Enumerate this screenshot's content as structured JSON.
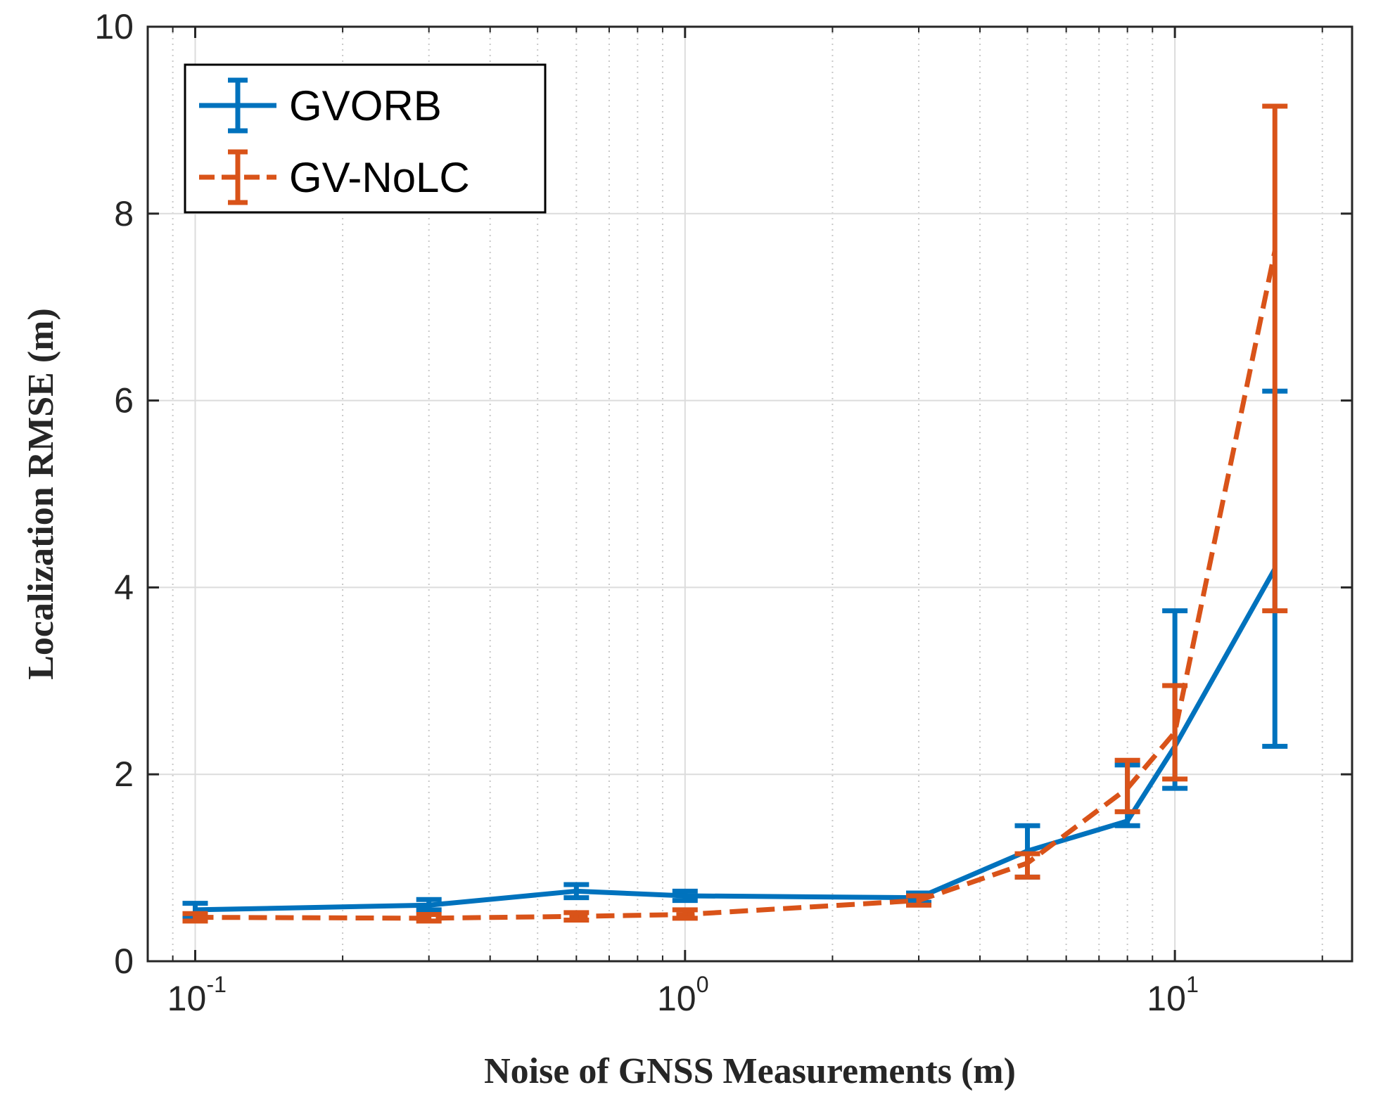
{
  "chart_data": {
    "type": "line",
    "title": "",
    "xlabel": "Noise of GNSS Measurements (m)",
    "ylabel": "Localization RMSE (m)",
    "xscale": "log",
    "xlim": [
      0.08,
      23
    ],
    "ylim": [
      0,
      10
    ],
    "grid": true,
    "legend_position": "top-left",
    "x_ticks": [
      {
        "value": 0.1,
        "base": "10",
        "exp": "-1"
      },
      {
        "value": 1,
        "base": "10",
        "exp": "0"
      },
      {
        "value": 10,
        "base": "10",
        "exp": "1"
      }
    ],
    "y_ticks": [
      {
        "value": 0,
        "label": "0"
      },
      {
        "value": 2,
        "label": "2"
      },
      {
        "value": 4,
        "label": "4"
      },
      {
        "value": 6,
        "label": "6"
      },
      {
        "value": 8,
        "label": "8"
      },
      {
        "value": 10,
        "label": "10"
      }
    ],
    "series": [
      {
        "name": "GVORB",
        "color": "#0072BD",
        "style": "solid",
        "x": [
          0.1,
          0.3,
          0.6,
          1,
          3,
          5,
          8,
          10,
          16
        ],
        "y": [
          0.55,
          0.6,
          0.75,
          0.7,
          0.68,
          1.18,
          1.5,
          2.3,
          4.2
        ],
        "err_low": [
          0.48,
          0.55,
          0.68,
          0.65,
          0.63,
          0.9,
          1.45,
          1.85,
          2.3
        ],
        "err_high": [
          0.62,
          0.66,
          0.82,
          0.75,
          0.73,
          1.45,
          2.1,
          3.75,
          6.1
        ]
      },
      {
        "name": "GV-NoLC",
        "color": "#D95319",
        "style": "dashed",
        "x": [
          0.1,
          0.3,
          0.6,
          1,
          3,
          5,
          8,
          10,
          16
        ],
        "y": [
          0.47,
          0.46,
          0.48,
          0.5,
          0.65,
          1.05,
          1.85,
          2.45,
          7.6
        ],
        "err_low": [
          0.43,
          0.43,
          0.44,
          0.46,
          0.6,
          0.9,
          1.6,
          1.95,
          3.75
        ],
        "err_high": [
          0.51,
          0.5,
          0.52,
          0.55,
          0.7,
          1.15,
          2.15,
          2.95,
          9.15
        ]
      }
    ]
  }
}
